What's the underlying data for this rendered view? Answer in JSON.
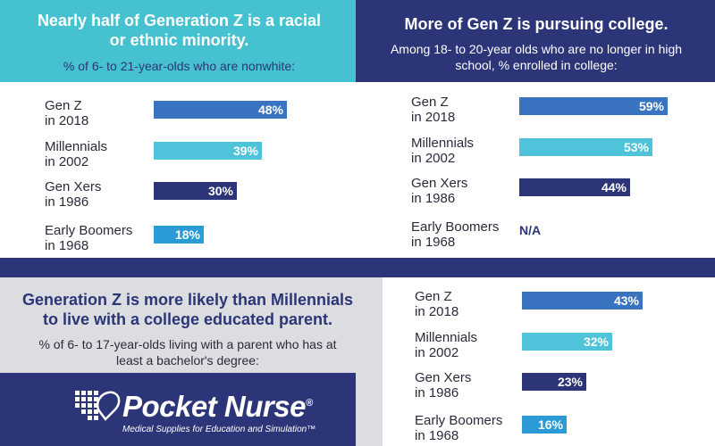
{
  "colors": {
    "navy": "#2b3577",
    "teal": "#45c1cf",
    "teal_bar": "#4ec3d9",
    "blue_bar": "#3a74c0",
    "mid_blue_bar": "#2a9bd5",
    "gray_panel": "#dcdde0",
    "white": "#ffffff"
  },
  "brand": {
    "name": "Pocket Nurse",
    "registered": "®",
    "tagline": "Medical Supplies for Education and Simulation™"
  },
  "chart_data": [
    {
      "type": "bar",
      "orientation": "horizontal",
      "title": "Nearly half of Generation Z is a racial or ethnic minority.",
      "subtitle": "% of 6- to 21-year-olds who are nonwhite:",
      "categories": [
        "Gen Z\nin 2018",
        "Millennials\nin 2002",
        "Gen Xers\nin 1986",
        "Early Boomers\nin 1968"
      ],
      "values": [
        48,
        39,
        30,
        18
      ],
      "value_labels": [
        "48%",
        "39%",
        "30%",
        "18%"
      ],
      "xlim": [
        0,
        100
      ]
    },
    {
      "type": "bar",
      "orientation": "horizontal",
      "title": "More of Gen Z is pursuing college.",
      "subtitle": "Among 18- to 20-year olds who are no longer in high school, % enrolled in college:",
      "categories": [
        "Gen Z\nin 2018",
        "Millennials\nin 2002",
        "Gen Xers\nin 1986",
        "Early Boomers\nin 1968"
      ],
      "values": [
        59,
        53,
        44,
        null
      ],
      "value_labels": [
        "59%",
        "53%",
        "44%",
        "N/A"
      ],
      "xlim": [
        0,
        100
      ]
    },
    {
      "type": "bar",
      "orientation": "horizontal",
      "title": "Generation Z is more likely than Millennials to live with a college educated parent.",
      "subtitle": "% of 6- to 17-year-olds living with a parent who has at least a bachelor's degree:",
      "categories": [
        "Gen Z\nin 2018",
        "Millennials\nin 2002",
        "Gen Xers\nin 1986",
        "Early Boomers\nin 1968"
      ],
      "values": [
        43,
        32,
        23,
        16
      ],
      "value_labels": [
        "43%",
        "32%",
        "23%",
        "16%"
      ],
      "xlim": [
        0,
        100
      ]
    }
  ]
}
